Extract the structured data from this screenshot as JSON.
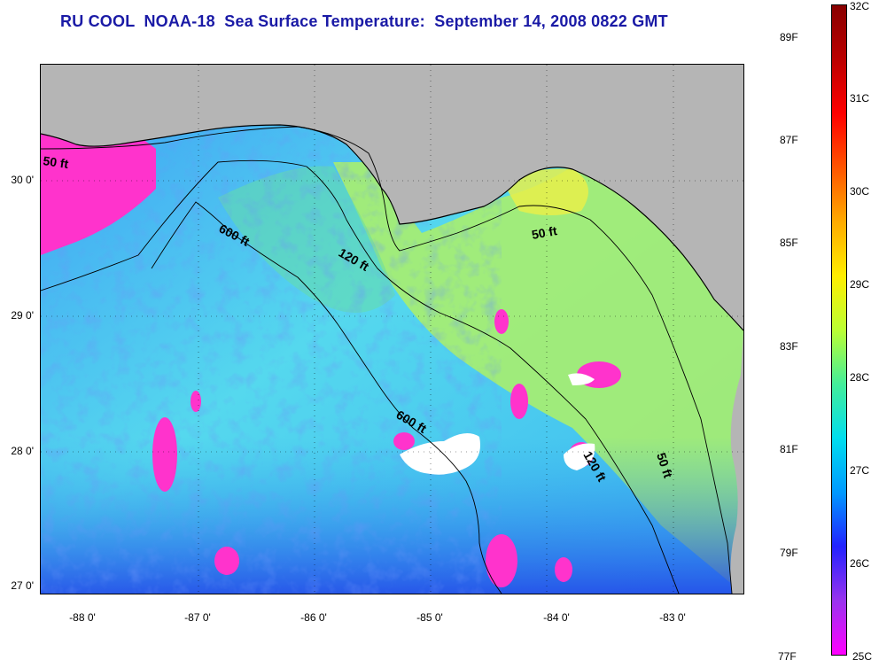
{
  "title": "RU COOL  NOAA-18  Sea Surface Temperature:  September 14, 2008 0822 GMT",
  "map": {
    "lat_labels": [
      "30 0'",
      "29 0'",
      "28 0'",
      "27 0'"
    ],
    "lon_labels": [
      "-88 0'",
      "-87 0'",
      "-86 0'",
      "-85 0'",
      "-84 0'",
      "-83 0'"
    ],
    "contour_labels": [
      "50 ft",
      "600 ft",
      "120 ft",
      "50 ft",
      "600 ft",
      "120 ft",
      "50 ft"
    ],
    "colors": {
      "land": "#b5b5b5",
      "ocean_base": "#66e8e0",
      "warm_shelf": "#b8f06a",
      "cool_patch": "#2a4cf0",
      "very_cool": "#ff33cc",
      "cloud": "#ffffff"
    }
  },
  "colorbar": {
    "celsius_labels": [
      "32C",
      "31C",
      "30C",
      "29C",
      "28C",
      "27C",
      "26C",
      "25C"
    ],
    "fahrenheit_labels": [
      "89F",
      "87F",
      "85F",
      "83F",
      "81F",
      "79F",
      "77F"
    ],
    "gradient_colors": [
      "#ff00ff",
      "#9933ee",
      "#2222ff",
      "#0099ff",
      "#00ddee",
      "#44ee99",
      "#bbff33",
      "#ffee00",
      "#ffaa00",
      "#ff5500",
      "#ff0000",
      "#bb0000",
      "#880000"
    ]
  }
}
